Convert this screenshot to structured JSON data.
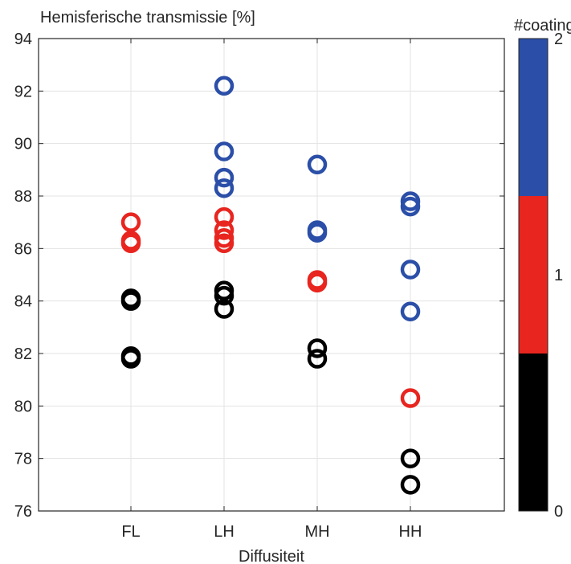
{
  "chart_data": {
    "type": "scatter",
    "title": "Hemisferische transmissie [%]",
    "xlabel": "Diffusiteit",
    "categories": [
      "FL",
      "LH",
      "MH",
      "HH"
    ],
    "ylim": [
      76,
      94
    ],
    "yticks": [
      76,
      78,
      80,
      82,
      84,
      86,
      88,
      90,
      92,
      94
    ],
    "grid": true,
    "colorbar": {
      "label": "#coating",
      "ticks": [
        "0",
        "1",
        "2"
      ],
      "colors": [
        "#000000",
        "#e8251f",
        "#2b4fa8"
      ]
    },
    "series": [
      {
        "coating": 0,
        "color": "#000000",
        "points": [
          {
            "x": "FL",
            "y": 84.1
          },
          {
            "x": "FL",
            "y": 84.0
          },
          {
            "x": "FL",
            "y": 81.9
          },
          {
            "x": "FL",
            "y": 81.8
          },
          {
            "x": "LH",
            "y": 84.4
          },
          {
            "x": "LH",
            "y": 84.2
          },
          {
            "x": "LH",
            "y": 83.7
          },
          {
            "x": "MH",
            "y": 82.2
          },
          {
            "x": "MH",
            "y": 81.8
          },
          {
            "x": "HH",
            "y": 78.0
          },
          {
            "x": "HH",
            "y": 77.0
          }
        ]
      },
      {
        "coating": 1,
        "color": "#e8251f",
        "points": [
          {
            "x": "FL",
            "y": 87.0
          },
          {
            "x": "FL",
            "y": 86.3
          },
          {
            "x": "FL",
            "y": 86.2
          },
          {
            "x": "LH",
            "y": 87.2
          },
          {
            "x": "LH",
            "y": 86.7
          },
          {
            "x": "LH",
            "y": 86.4
          },
          {
            "x": "LH",
            "y": 86.2
          },
          {
            "x": "MH",
            "y": 84.8
          },
          {
            "x": "MH",
            "y": 84.7
          },
          {
            "x": "HH",
            "y": 80.3
          }
        ]
      },
      {
        "coating": 2,
        "color": "#2b4fa8",
        "points": [
          {
            "x": "LH",
            "y": 92.2
          },
          {
            "x": "LH",
            "y": 89.7
          },
          {
            "x": "LH",
            "y": 88.7
          },
          {
            "x": "LH",
            "y": 88.3
          },
          {
            "x": "MH",
            "y": 89.2
          },
          {
            "x": "MH",
            "y": 86.7
          },
          {
            "x": "MH",
            "y": 86.6
          },
          {
            "x": "HH",
            "y": 87.8
          },
          {
            "x": "HH",
            "y": 87.6
          },
          {
            "x": "HH",
            "y": 85.2
          },
          {
            "x": "HH",
            "y": 83.6
          }
        ]
      }
    ]
  }
}
